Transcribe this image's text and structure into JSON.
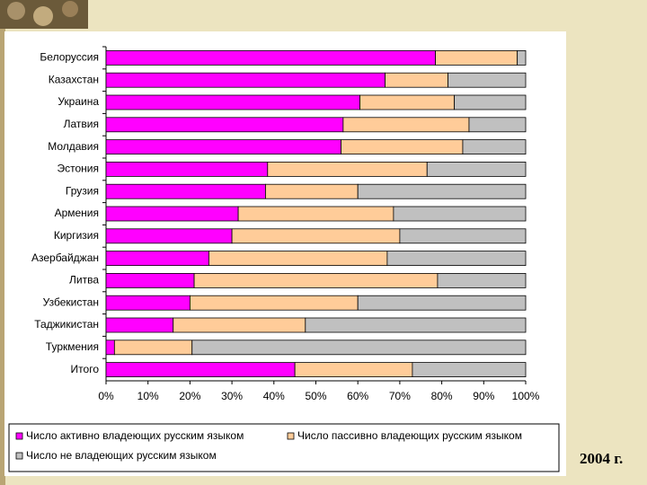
{
  "chart_data": {
    "type": "stacked-bar-horizontal",
    "categories": [
      "Белоруссия",
      "Казахстан",
      "Украина",
      "Латвия",
      "Молдавия",
      "Эстония",
      "Грузия",
      "Армения",
      "Киргизия",
      "Азербайджан",
      "Литва",
      "Узбекистан",
      "Таджикистан",
      "Туркмения",
      "Итого"
    ],
    "series": [
      {
        "name": "Число активно владеющих русским языком",
        "color": "#ff00ff",
        "values": [
          78.5,
          66.5,
          60.5,
          56.5,
          56,
          38.5,
          38,
          31.5,
          30,
          24.5,
          21,
          20,
          16,
          2,
          45
        ]
      },
      {
        "name": "Число пассивно владеющих русским языком",
        "color": "#ffcc99",
        "values": [
          19.5,
          15,
          22.5,
          30,
          29,
          38,
          22,
          37,
          40,
          42.5,
          58,
          40,
          31.5,
          18.5,
          28
        ]
      },
      {
        "name": "Число не владеющих русским языком",
        "color": "#c0c0c0",
        "values": [
          2,
          18.5,
          17,
          13.5,
          15,
          23.5,
          40,
          31.5,
          30,
          33,
          21,
          40,
          52.5,
          79.5,
          27
        ]
      }
    ],
    "xlim": [
      0,
      100
    ],
    "xticks": [
      {
        "value": 0,
        "label": "0%"
      },
      {
        "value": 10,
        "label": "10%"
      },
      {
        "value": 20,
        "label": "20%"
      },
      {
        "value": 30,
        "label": "30%"
      },
      {
        "value": 40,
        "label": "40%"
      },
      {
        "value": 50,
        "label": "50%"
      },
      {
        "value": 60,
        "label": "60%"
      },
      {
        "value": 70,
        "label": "70%"
      },
      {
        "value": 80,
        "label": "80%"
      },
      {
        "value": 90,
        "label": "90%"
      },
      {
        "value": 100,
        "label": "100%"
      }
    ],
    "grid": false,
    "legend": "bottom",
    "annotation": "2004 г."
  }
}
